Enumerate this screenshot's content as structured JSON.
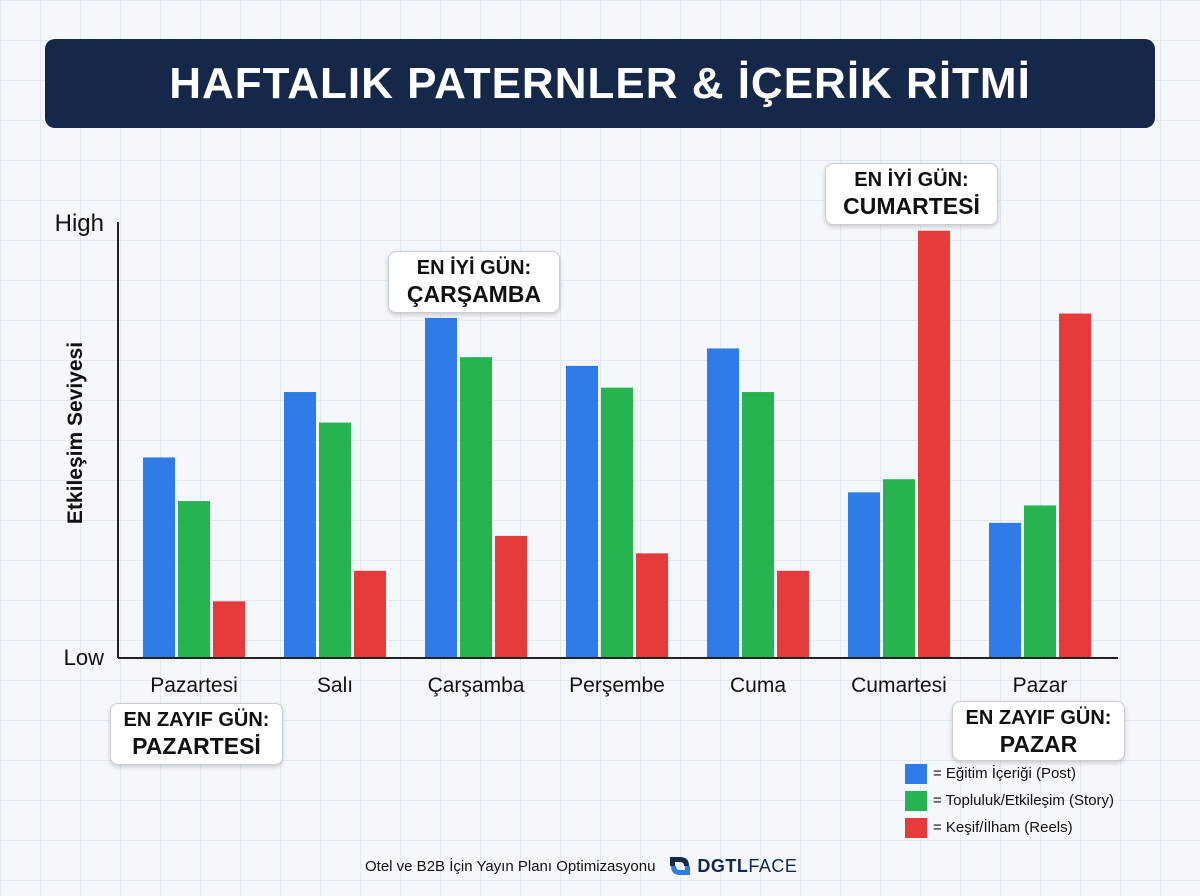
{
  "title": "HAFTALIK PATERNLER & İÇERİK RİTMİ",
  "chart_data": {
    "type": "bar",
    "ylabel": "Etkileşim Seviyesi",
    "y_tick_labels": {
      "high": "High",
      "low": "Low"
    },
    "ylim": [
      0,
      100
    ],
    "categories": [
      "Pazartesi",
      "Salı",
      "Çarşamba",
      "Perşembe",
      "Cuma",
      "Cumartesi",
      "Pazar"
    ],
    "series": [
      {
        "name": "= Eğitim İçeriği (Post)",
        "color": "#2f7ce8",
        "values": [
          46,
          61,
          78,
          67,
          71,
          38,
          31
        ]
      },
      {
        "name": "= Topluluk/Etkileşim (Story)",
        "color": "#27b350",
        "values": [
          36,
          54,
          69,
          62,
          61,
          41,
          35
        ]
      },
      {
        "name": "= Keşif/İlham (Reels)",
        "color": "#e63b3b",
        "values": [
          13,
          20,
          28,
          24,
          20,
          98,
          79
        ]
      }
    ],
    "annotations": [
      {
        "line1": "EN İYİ GÜN:",
        "line2": "ÇARŞAMBA"
      },
      {
        "line1": "EN İYİ GÜN:",
        "line2": "CUMARTESİ"
      },
      {
        "line1": "EN ZAYIF GÜN:",
        "line2": "PAZARTESİ"
      },
      {
        "line1": "EN ZAYIF GÜN:",
        "line2": "PAZAR"
      }
    ],
    "legend_position": "bottom-right",
    "grid": true
  },
  "footer": {
    "text": "Otel ve B2B İçin Yayın Planı Optimizasyonu",
    "brand_bold": "DGTL",
    "brand_light": "FACE",
    "brand_color": "#16284a"
  }
}
